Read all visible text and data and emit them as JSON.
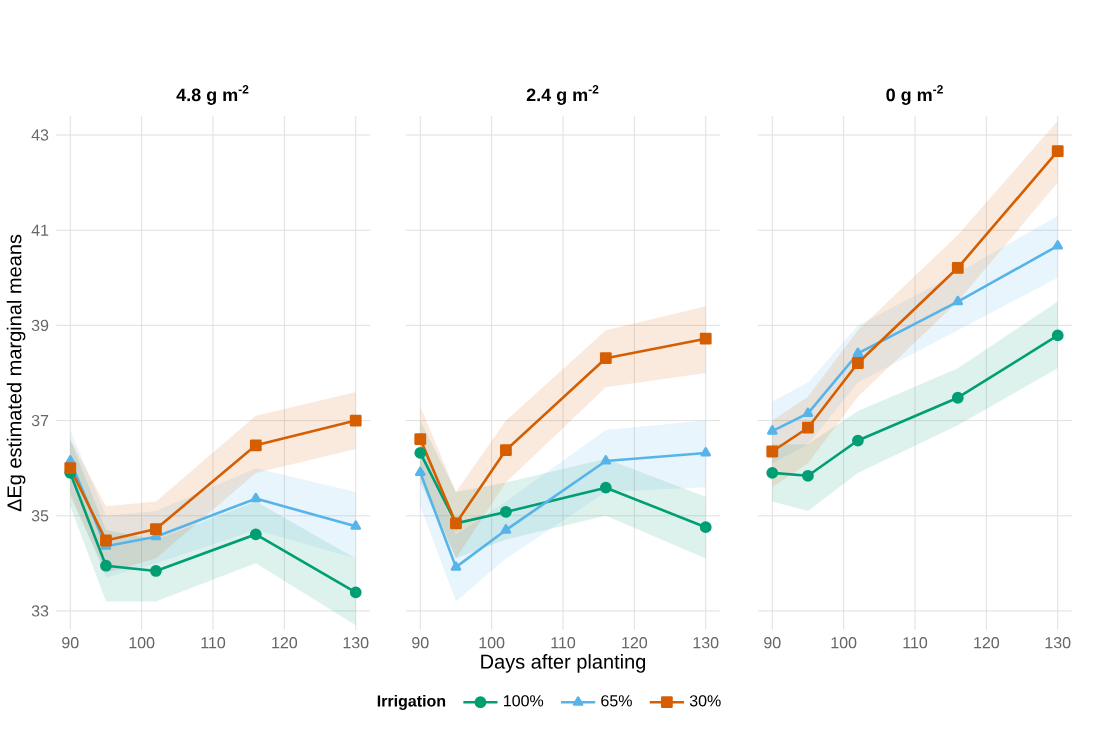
{
  "chart_data": [
    {
      "type": "line",
      "title": "4.8 g m$^{-2}$",
      "ylabel": "ΔEg estimated marginal means",
      "x": [
        90,
        95,
        102,
        116,
        130
      ],
      "xlim": [
        88,
        132
      ],
      "ylim": [
        32.6,
        43.4
      ],
      "xticks": [
        90,
        100,
        110,
        120,
        130
      ],
      "yticks": [
        33,
        35,
        37,
        39,
        41,
        43
      ],
      "grid": true,
      "series": [
        {
          "color": "#009e73",
          "marker": "circle",
          "values": [
            35.9,
            33.95,
            33.84,
            34.61,
            33.39
          ],
          "lower": [
            35.2,
            33.2,
            33.2,
            34.0,
            32.7
          ],
          "upper": [
            36.6,
            34.7,
            34.5,
            35.3,
            34.1
          ]
        },
        {
          "color": "#56b4e9",
          "marker": "triangle",
          "values": [
            36.15,
            34.36,
            34.56,
            35.36,
            34.78
          ],
          "lower": [
            35.5,
            33.7,
            34.0,
            34.7,
            34.1
          ],
          "upper": [
            36.8,
            35.0,
            35.1,
            36.0,
            35.5
          ]
        },
        {
          "color": "#d55e00",
          "marker": "square",
          "values": [
            36.0,
            34.48,
            34.72,
            36.48,
            37.0
          ],
          "lower": [
            35.4,
            33.8,
            34.1,
            35.9,
            36.4
          ],
          "upper": [
            36.6,
            35.2,
            35.3,
            37.1,
            37.6
          ]
        }
      ]
    },
    {
      "type": "line",
      "title": "2.4 g m$^{-2}$",
      "xlabel": "Days after planting",
      "legend_title": "Irrigation",
      "legend": "bottom",
      "tick_labels": "x",
      "x": [
        90,
        95,
        102,
        116,
        130
      ],
      "xlim": [
        88,
        132
      ],
      "ylim": [
        32.6,
        43.4
      ],
      "xticks": [
        90,
        100,
        110,
        120,
        130
      ],
      "yticks": [
        33,
        35,
        37,
        39,
        41,
        43
      ],
      "grid": true,
      "series": [
        {
          "name": "100%",
          "color": "#009e73",
          "marker": "circle",
          "values": [
            36.32,
            34.84,
            35.08,
            35.59,
            34.76
          ],
          "lower": [
            35.7,
            34.1,
            34.5,
            35.0,
            34.1
          ],
          "upper": [
            37.0,
            35.5,
            35.7,
            36.2,
            35.4
          ]
        },
        {
          "name": "65%",
          "color": "#56b4e9",
          "marker": "triangle",
          "values": [
            35.91,
            33.92,
            34.7,
            36.15,
            36.32
          ],
          "lower": [
            35.2,
            33.2,
            34.1,
            35.5,
            35.6
          ],
          "upper": [
            36.6,
            34.6,
            35.3,
            36.8,
            37.0
          ]
        },
        {
          "name": "30%",
          "color": "#d55e00",
          "marker": "square",
          "values": [
            36.61,
            34.84,
            36.38,
            38.31,
            38.72
          ],
          "lower": [
            35.9,
            34.1,
            35.7,
            37.7,
            38.0
          ],
          "upper": [
            37.3,
            35.5,
            37.0,
            38.9,
            39.4
          ]
        }
      ]
    },
    {
      "type": "line",
      "title": "0 g m$^{-2}$",
      "tick_labels": "x",
      "x": [
        90,
        95,
        102,
        116,
        130
      ],
      "xlim": [
        88,
        132
      ],
      "ylim": [
        32.6,
        43.4
      ],
      "xticks": [
        90,
        100,
        110,
        120,
        130
      ],
      "yticks": [
        33,
        35,
        37,
        39,
        41,
        43
      ],
      "grid": true,
      "series": [
        {
          "color": "#009e73",
          "marker": "circle",
          "values": [
            35.9,
            35.84,
            36.58,
            37.48,
            38.79
          ],
          "lower": [
            35.3,
            35.1,
            35.9,
            36.9,
            38.1
          ],
          "upper": [
            36.5,
            36.5,
            37.2,
            38.1,
            39.5
          ]
        },
        {
          "color": "#56b4e9",
          "marker": "triangle",
          "values": [
            36.78,
            37.15,
            38.41,
            39.5,
            40.67
          ],
          "lower": [
            36.1,
            36.5,
            37.8,
            38.9,
            40.0
          ],
          "upper": [
            37.4,
            37.8,
            39.0,
            40.1,
            41.3
          ]
        },
        {
          "color": "#d55e00",
          "marker": "square",
          "values": [
            36.35,
            36.85,
            38.21,
            40.21,
            42.66
          ],
          "lower": [
            35.6,
            36.1,
            37.5,
            39.5,
            42.0
          ],
          "upper": [
            37.0,
            37.5,
            38.9,
            40.9,
            43.3
          ]
        }
      ]
    }
  ]
}
